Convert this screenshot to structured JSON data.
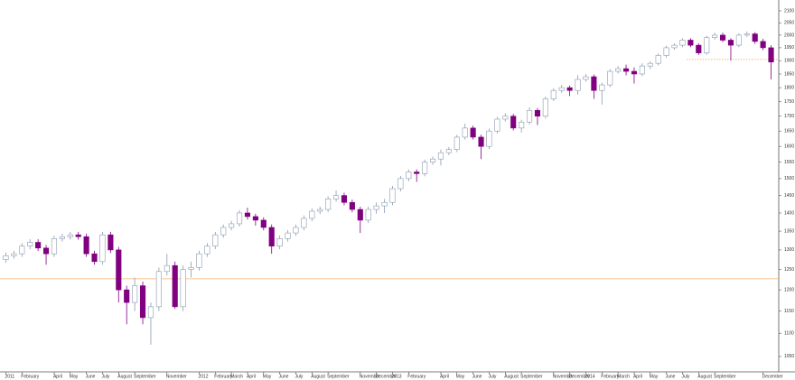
{
  "chart_data": {
    "type": "candlestick",
    "categories": [
      "2011",
      null,
      "February",
      null,
      null,
      null,
      "April",
      null,
      "May",
      null,
      "June",
      null,
      "July",
      null,
      "August",
      null,
      "September",
      null,
      null,
      null,
      "November",
      null,
      null,
      null,
      "2012",
      null,
      "February",
      null,
      "March",
      null,
      "April",
      null,
      "May",
      null,
      "June",
      null,
      "July",
      null,
      "August",
      null,
      "September",
      null,
      null,
      null,
      "November",
      null,
      "December",
      null,
      "2013",
      null,
      "February",
      null,
      null,
      null,
      "April",
      null,
      "May",
      null,
      "June",
      null,
      "July",
      null,
      "August",
      null,
      "September",
      null,
      null,
      null,
      "November",
      null,
      "December",
      null,
      "2014",
      null,
      "February",
      null,
      "March",
      null,
      "April",
      null,
      "May",
      null,
      "June",
      null,
      "July",
      null,
      "August",
      null,
      "September",
      null,
      null,
      null,
      null,
      null,
      "December",
      null
    ],
    "open": [
      1275,
      1285,
      1290,
      1310,
      1320,
      1305,
      1290,
      1330,
      1335,
      1340,
      1335,
      1290,
      1270,
      1340,
      1300,
      1200,
      1170,
      1210,
      1135,
      1160,
      1245,
      1260,
      1160,
      1250,
      1255,
      1290,
      1310,
      1340,
      1360,
      1370,
      1400,
      1390,
      1380,
      1360,
      1310,
      1330,
      1345,
      1360,
      1385,
      1405,
      1410,
      1440,
      1450,
      1430,
      1410,
      1380,
      1410,
      1420,
      1430,
      1470,
      1500,
      1520,
      1515,
      1550,
      1560,
      1580,
      1590,
      1630,
      1660,
      1630,
      1600,
      1650,
      1690,
      1700,
      1660,
      1680,
      1720,
      1700,
      1760,
      1790,
      1800,
      1790,
      1830,
      1840,
      1790,
      1810,
      1860,
      1870,
      1860,
      1850,
      1880,
      1890,
      1920,
      1950,
      1960,
      1980,
      1960,
      1930,
      1990,
      2000,
      1980,
      1960,
      2000,
      2005,
      1975,
      1950
    ],
    "high": [
      1293,
      1298,
      1318,
      1328,
      1328,
      1313,
      1338,
      1343,
      1348,
      1348,
      1343,
      1298,
      1348,
      1348,
      1308,
      1210,
      1230,
      1220,
      1170,
      1255,
      1290,
      1270,
      1260,
      1270,
      1298,
      1318,
      1348,
      1368,
      1378,
      1408,
      1415,
      1398,
      1388,
      1368,
      1338,
      1353,
      1368,
      1393,
      1413,
      1418,
      1448,
      1465,
      1458,
      1438,
      1418,
      1418,
      1430,
      1440,
      1478,
      1508,
      1528,
      1528,
      1558,
      1568,
      1590,
      1598,
      1638,
      1675,
      1668,
      1638,
      1658,
      1698,
      1710,
      1708,
      1688,
      1730,
      1728,
      1768,
      1798,
      1810,
      1808,
      1845,
      1850,
      1848,
      1818,
      1868,
      1880,
      1885,
      1875,
      1890,
      1898,
      1928,
      1958,
      1968,
      1988,
      1988,
      1968,
      1998,
      2010,
      2010,
      1988,
      2008,
      2015,
      2012,
      1985,
      1960
    ],
    "low": [
      1267,
      1277,
      1282,
      1302,
      1297,
      1262,
      1282,
      1322,
      1327,
      1327,
      1282,
      1262,
      1262,
      1292,
      1170,
      1120,
      1150,
      1120,
      1075,
      1150,
      1235,
      1155,
      1150,
      1230,
      1247,
      1282,
      1302,
      1332,
      1352,
      1362,
      1382,
      1365,
      1352,
      1290,
      1302,
      1322,
      1337,
      1352,
      1377,
      1397,
      1402,
      1432,
      1422,
      1402,
      1345,
      1372,
      1398,
      1400,
      1422,
      1462,
      1492,
      1490,
      1507,
      1542,
      1540,
      1572,
      1582,
      1622,
      1622,
      1560,
      1592,
      1642,
      1682,
      1652,
      1645,
      1672,
      1670,
      1692,
      1752,
      1782,
      1770,
      1775,
      1822,
      1760,
      1740,
      1802,
      1852,
      1845,
      1815,
      1842,
      1868,
      1882,
      1912,
      1942,
      1952,
      1952,
      1922,
      1922,
      1982,
      1972,
      1900,
      1952,
      1992,
      1965,
      1940,
      1830
    ],
    "close": [
      1285,
      1290,
      1310,
      1320,
      1305,
      1290,
      1330,
      1335,
      1340,
      1335,
      1290,
      1270,
      1340,
      1300,
      1200,
      1170,
      1210,
      1135,
      1160,
      1245,
      1260,
      1160,
      1250,
      1255,
      1290,
      1310,
      1340,
      1360,
      1370,
      1400,
      1390,
      1380,
      1360,
      1310,
      1330,
      1345,
      1360,
      1385,
      1405,
      1410,
      1440,
      1450,
      1430,
      1410,
      1380,
      1410,
      1420,
      1430,
      1470,
      1500,
      1520,
      1515,
      1550,
      1560,
      1580,
      1590,
      1630,
      1660,
      1630,
      1600,
      1650,
      1690,
      1700,
      1660,
      1680,
      1720,
      1700,
      1760,
      1790,
      1800,
      1790,
      1830,
      1840,
      1790,
      1810,
      1860,
      1870,
      1860,
      1850,
      1880,
      1890,
      1920,
      1950,
      1960,
      1980,
      1960,
      1930,
      1990,
      2000,
      1980,
      1960,
      2000,
      2005,
      1975,
      1950,
      1895
    ],
    "up_color": "#ffffff",
    "up_edge": "#8a9bb0",
    "down_color": "#800080",
    "ylim": [
      1018,
      2146
    ],
    "log": true,
    "yticks": [
      1050,
      1100,
      1150,
      1200,
      1250,
      1300,
      1350,
      1400,
      1450,
      1500,
      1550,
      1600,
      1650,
      1700,
      1750,
      1800,
      1850,
      1900,
      1950,
      2000,
      2050,
      2100
    ],
    "hlines": [
      {
        "value": 1227,
        "style": "solid",
        "color": "#f5b26b"
      },
      {
        "value": 1905,
        "style": "dotted",
        "color": "#f5b26b"
      }
    ]
  }
}
